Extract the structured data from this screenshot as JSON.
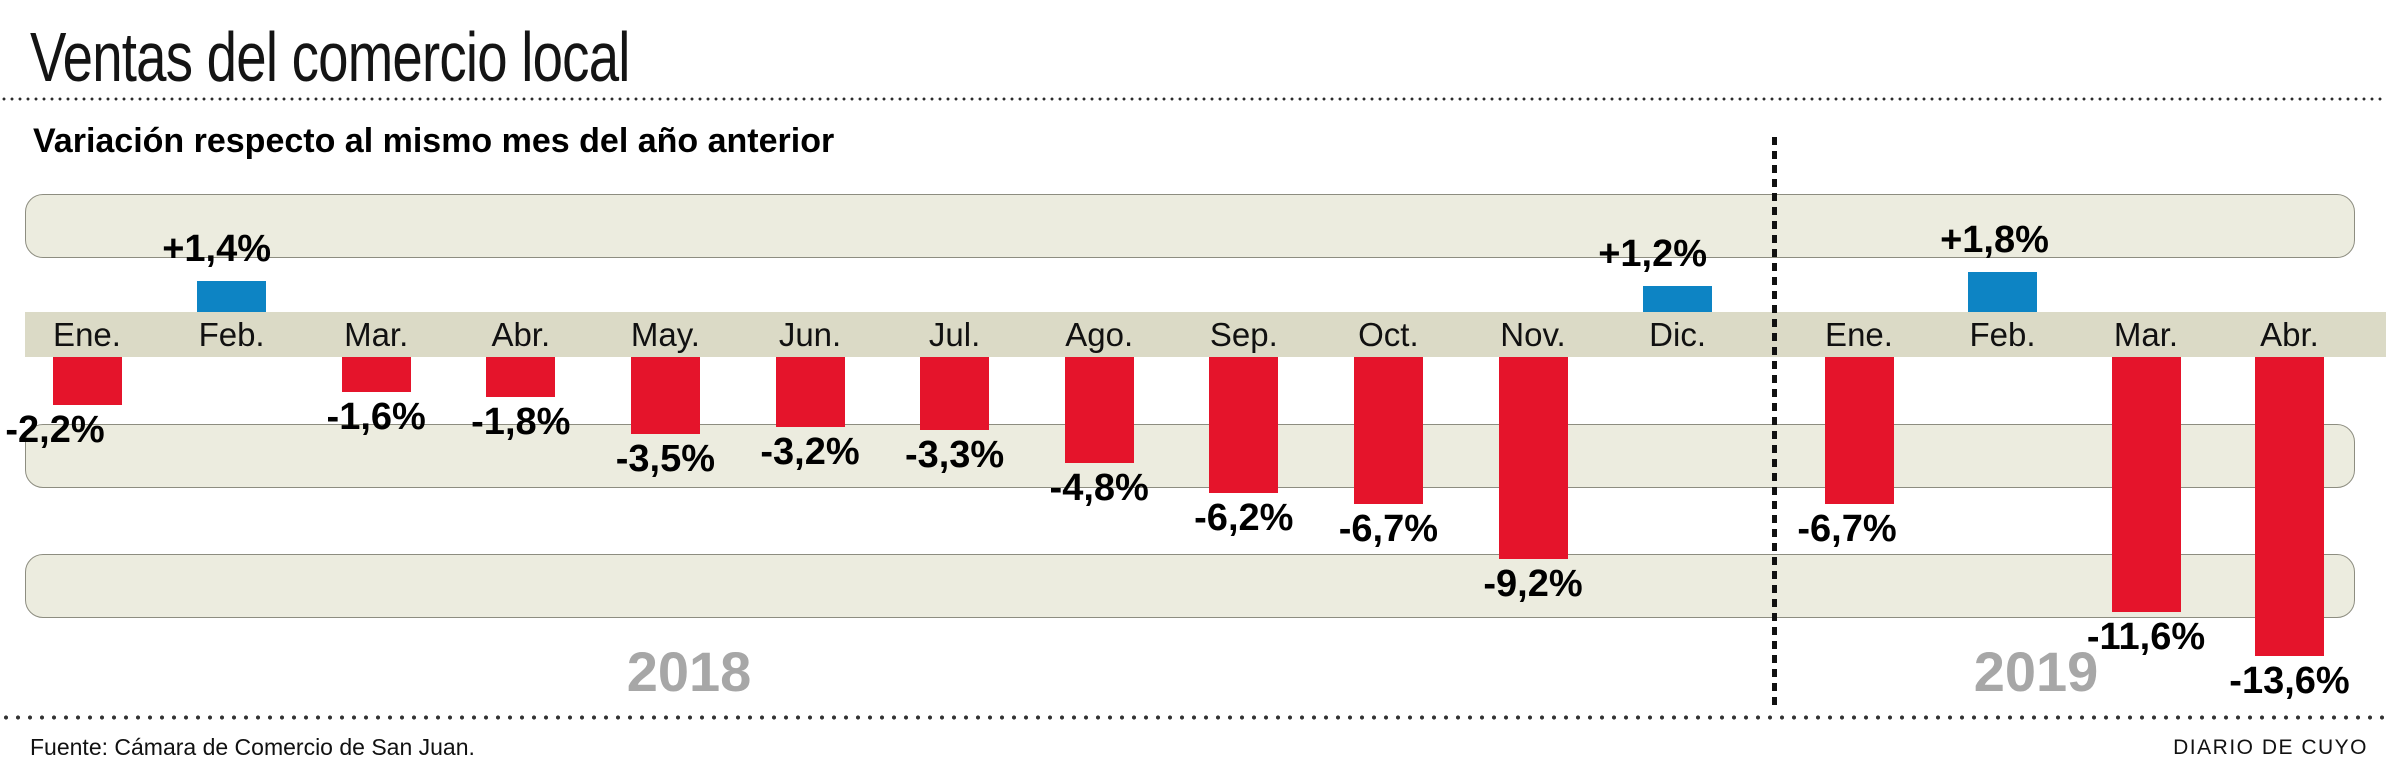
{
  "title": "Ventas del comercio local",
  "subtitle": "Variación respecto al mismo mes del año anterior",
  "footer": {
    "source": "Fuente: Cámara de Comercio de San Juan.",
    "credit": "DIARIO DE CUYO"
  },
  "colors": {
    "negative_bar": "#e5142b",
    "positive_bar": "#0d84c4",
    "grid_band": "#ececdf",
    "axis_band": "#dbdac6",
    "band_border": "#8d8d80",
    "year_label": "#a7a7a7"
  },
  "chart_data": {
    "type": "bar",
    "title": "Ventas del comercio local",
    "subtitle": "Variación respecto al mismo mes del año anterior",
    "unit": "percent change vs same month previous year",
    "legend_position": "none",
    "grid": "horizontal-bands",
    "ylim": [
      -14,
      5
    ],
    "groups": [
      {
        "year": "2018",
        "months": [
          {
            "label": "Ene.",
            "value": -2.2,
            "value_label": "-2,2%"
          },
          {
            "label": "Feb.",
            "value": 1.4,
            "value_label": "+1,4%"
          },
          {
            "label": "Mar.",
            "value": -1.6,
            "value_label": "-1,6%"
          },
          {
            "label": "Abr.",
            "value": -1.8,
            "value_label": "-1,8%"
          },
          {
            "label": "May.",
            "value": -3.5,
            "value_label": "-3,5%"
          },
          {
            "label": "Jun.",
            "value": -3.2,
            "value_label": "-3,2%"
          },
          {
            "label": "Jul.",
            "value": -3.3,
            "value_label": "-3,3%"
          },
          {
            "label": "Ago.",
            "value": -4.8,
            "value_label": "-4,8%"
          },
          {
            "label": "Sep.",
            "value": -6.2,
            "value_label": "-6,2%"
          },
          {
            "label": "Oct.",
            "value": -6.7,
            "value_label": "-6,7%"
          },
          {
            "label": "Nov.",
            "value": -9.2,
            "value_label": "-9,2%"
          },
          {
            "label": "Dic.",
            "value": 1.2,
            "value_label": "+1,2%"
          }
        ]
      },
      {
        "year": "2019",
        "months": [
          {
            "label": "Ene.",
            "value": -6.7,
            "value_label": "-6,7%"
          },
          {
            "label": "Feb.",
            "value": 1.8,
            "value_label": "+1,8%"
          },
          {
            "label": "Mar.",
            "value": -11.6,
            "value_label": "-11,6%"
          },
          {
            "label": "Abr.",
            "value": -13.6,
            "value_label": "-13,6%"
          }
        ]
      }
    ]
  }
}
